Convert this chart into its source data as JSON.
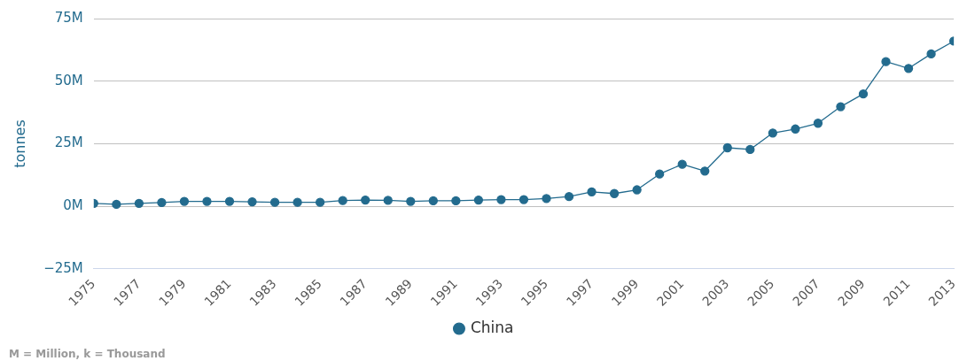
{
  "chart_data": {
    "type": "line",
    "ylabel": "tonnes",
    "annotations": [
      "M = Million, k = Thousand"
    ],
    "x": [
      1975,
      1976,
      1977,
      1978,
      1979,
      1980,
      1981,
      1982,
      1983,
      1984,
      1985,
      1986,
      1987,
      1988,
      1989,
      1990,
      1991,
      1992,
      1993,
      1994,
      1995,
      1996,
      1997,
      1998,
      1999,
      2000,
      2001,
      2002,
      2003,
      2004,
      2005,
      2006,
      2007,
      2008,
      2009,
      2010,
      2011,
      2012,
      2013
    ],
    "series": [
      {
        "name": "China",
        "color": "#236b8e",
        "values": [
          1.2,
          0.8,
          1.2,
          1.5,
          2.0,
          2.0,
          2.0,
          1.8,
          1.6,
          1.6,
          1.6,
          2.3,
          2.5,
          2.4,
          2.0,
          2.2,
          2.2,
          2.5,
          2.7,
          2.7,
          3.1,
          3.9,
          5.8,
          5.1,
          6.6,
          12.9,
          16.8,
          14.1,
          23.4,
          22.7,
          29.3,
          30.9,
          33.2,
          39.8,
          44.9,
          57.8,
          55.1,
          60.9,
          66.0
        ]
      }
    ],
    "xlim": [
      1975,
      2013
    ],
    "xticks": [
      1975,
      1977,
      1979,
      1981,
      1983,
      1985,
      1987,
      1989,
      1991,
      1993,
      1995,
      1997,
      1999,
      2001,
      2003,
      2005,
      2007,
      2009,
      2011,
      2013
    ],
    "ylim": [
      -25,
      75
    ],
    "yticks": [
      {
        "value": -25,
        "label": "−25M"
      },
      {
        "value": 0,
        "label": "0M"
      },
      {
        "value": 25,
        "label": "25M"
      },
      {
        "value": 50,
        "label": "50M"
      },
      {
        "value": 75,
        "label": "75M"
      }
    ],
    "grid": "y",
    "legend": "bottom",
    "marker": "circle",
    "line_style": "solid"
  }
}
